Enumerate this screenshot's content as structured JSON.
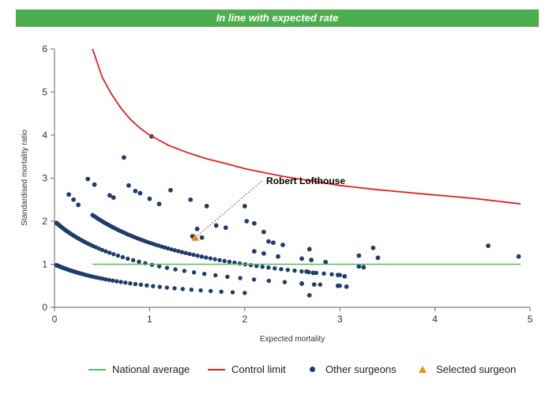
{
  "banner": {
    "text": "In line with expected rate",
    "color": "#4cae4c"
  },
  "chart_data": {
    "type": "scatter",
    "xlabel": "Expected mortality",
    "ylabel": "Standardised mortality ratio",
    "xlim": [
      0,
      5
    ],
    "ylim": [
      0,
      6
    ],
    "xticks": [
      "0",
      "1",
      "2",
      "3",
      "4",
      "5"
    ],
    "yticks": [
      "0",
      "1",
      "2",
      "3",
      "4",
      "5",
      "6"
    ],
    "grid": false,
    "legend_position": "bottom",
    "national_average": {
      "name": "National average",
      "color": "#5cb85c",
      "y": 1,
      "x_range": [
        0.4,
        4.9
      ]
    },
    "control_limit": {
      "name": "Control limit",
      "color": "#e02020",
      "points": [
        [
          0.4,
          6.0
        ],
        [
          0.5,
          5.35
        ],
        [
          0.6,
          4.95
        ],
        [
          0.7,
          4.62
        ],
        [
          0.8,
          4.36
        ],
        [
          0.9,
          4.16
        ],
        [
          1.0,
          4.0
        ],
        [
          1.2,
          3.76
        ],
        [
          1.4,
          3.59
        ],
        [
          1.6,
          3.45
        ],
        [
          1.8,
          3.34
        ],
        [
          2.0,
          3.22
        ],
        [
          2.2,
          3.13
        ],
        [
          2.4,
          3.04
        ],
        [
          2.6,
          2.97
        ],
        [
          2.8,
          2.9
        ],
        [
          3.0,
          2.83
        ],
        [
          3.2,
          2.78
        ],
        [
          3.4,
          2.73
        ],
        [
          3.6,
          2.69
        ],
        [
          3.8,
          2.65
        ],
        [
          4.0,
          2.61
        ],
        [
          4.2,
          2.57
        ],
        [
          4.4,
          2.53
        ],
        [
          4.6,
          2.48
        ],
        [
          4.9,
          2.4
        ]
      ]
    },
    "curve_families": [
      {
        "deaths": 1,
        "x_range": [
          0.02,
          2.0
        ]
      },
      {
        "deaths": 2,
        "x_range": [
          0.02,
          3.0
        ]
      },
      {
        "deaths": 3,
        "x_range": [
          0.4,
          3.0
        ]
      }
    ],
    "other_surgeons": {
      "name": "Other surgeons",
      "color": "#1f3d6b",
      "points": [
        [
          1.02,
          3.97
        ],
        [
          0.73,
          3.48
        ],
        [
          0.35,
          2.98
        ],
        [
          0.42,
          2.85
        ],
        [
          0.78,
          2.83
        ],
        [
          1.22,
          2.72
        ],
        [
          0.85,
          2.7
        ],
        [
          0.9,
          2.65
        ],
        [
          0.15,
          2.62
        ],
        [
          0.2,
          2.5
        ],
        [
          1.0,
          2.52
        ],
        [
          1.43,
          2.5
        ],
        [
          0.25,
          2.38
        ],
        [
          0.58,
          2.6
        ],
        [
          0.62,
          2.55
        ],
        [
          1.1,
          2.4
        ],
        [
          1.6,
          2.35
        ],
        [
          1.7,
          1.9
        ],
        [
          1.8,
          1.85
        ],
        [
          1.5,
          1.82
        ],
        [
          2.0,
          2.35
        ],
        [
          2.02,
          2.0
        ],
        [
          2.1,
          1.95
        ],
        [
          2.2,
          1.75
        ],
        [
          2.25,
          1.53
        ],
        [
          2.3,
          1.5
        ],
        [
          2.4,
          1.45
        ],
        [
          2.1,
          1.3
        ],
        [
          2.2,
          1.25
        ],
        [
          2.35,
          1.18
        ],
        [
          2.6,
          1.13
        ],
        [
          2.68,
          1.35
        ],
        [
          2.7,
          1.1
        ],
        [
          2.85,
          1.05
        ],
        [
          2.65,
          0.83
        ],
        [
          2.72,
          0.8
        ],
        [
          2.6,
          0.55
        ],
        [
          2.73,
          0.53
        ],
        [
          2.68,
          0.28
        ],
        [
          2.98,
          0.75
        ],
        [
          3.05,
          0.72
        ],
        [
          2.98,
          0.5
        ],
        [
          3.07,
          0.48
        ],
        [
          3.2,
          1.2
        ],
        [
          3.2,
          0.95
        ],
        [
          3.25,
          0.93
        ],
        [
          3.35,
          1.38
        ],
        [
          3.4,
          1.15
        ],
        [
          4.56,
          1.43
        ],
        [
          4.88,
          1.18
        ],
        [
          1.45,
          1.65
        ],
        [
          1.55,
          1.62
        ]
      ]
    },
    "selected_surgeon": {
      "name": "Selected surgeon",
      "label": "Robert Lofthouse",
      "color": "#ef8c1d",
      "x": 1.48,
      "y": 1.62
    },
    "legend": [
      "National average",
      "Control limit",
      "Other surgeons",
      "Selected surgeon"
    ]
  }
}
